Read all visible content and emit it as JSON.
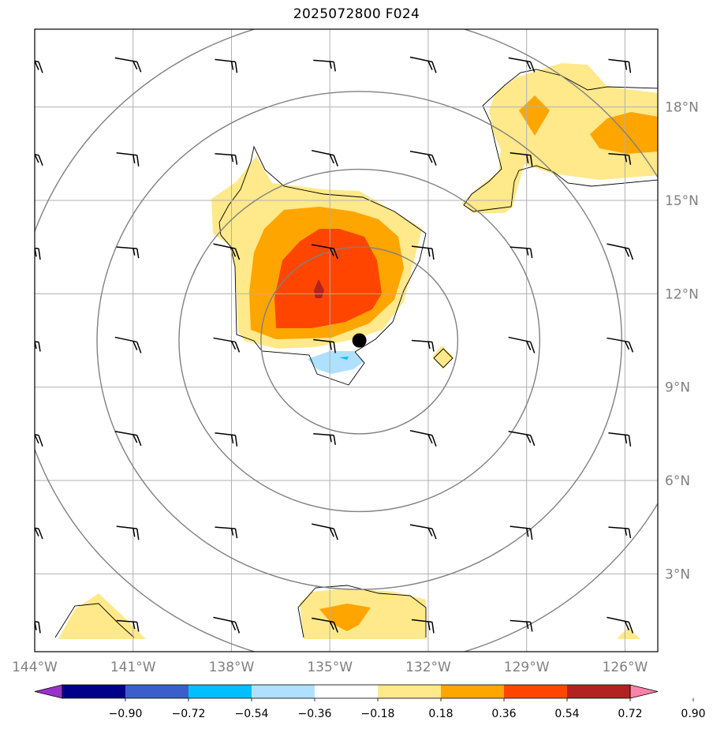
{
  "title": "2025072800 F024",
  "map": {
    "lon_range": [
      -144,
      -125
    ],
    "lat_range": [
      0.5,
      20.5
    ],
    "lon_ticks": [
      {
        "lon": -144,
        "label": "144°W"
      },
      {
        "lon": -141,
        "label": "141°W"
      },
      {
        "lon": -138,
        "label": "138°W"
      },
      {
        "lon": -135,
        "label": "135°W"
      },
      {
        "lon": -132,
        "label": "132°W"
      },
      {
        "lon": -129,
        "label": "129°W"
      },
      {
        "lon": -126,
        "label": "126°W"
      }
    ],
    "lat_ticks": [
      {
        "lat": 18,
        "label": "18°N"
      },
      {
        "lat": 15,
        "label": "15°N"
      },
      {
        "lat": 12,
        "label": "12°N"
      },
      {
        "lat": 9,
        "label": "9°N"
      },
      {
        "lat": 6,
        "label": "6°N"
      },
      {
        "lat": 3,
        "label": "3°N"
      }
    ],
    "grid": true,
    "storm_center": {
      "lon": -134.1,
      "lat": 10.5
    },
    "range_ring_radii_deg": [
      3,
      5.5,
      8,
      10.5
    ],
    "barb_rows_lat": [
      19.4,
      16.4,
      13.4,
      10.4,
      7.4,
      4.4,
      1.4
    ],
    "barb_cols_lon": [
      -144,
      -141,
      -138,
      -135,
      -132,
      -129,
      -126
    ]
  },
  "colorbar": {
    "tick_labels": [
      "−0.90",
      "−0.72",
      "−0.54",
      "−0.36",
      "−0.18",
      "0.18",
      "0.36",
      "0.54",
      "0.72",
      "0.90"
    ],
    "colors": [
      "#9932cc",
      "#00008b",
      "#3a5fcd",
      "#00bfff",
      "#b0e0ff",
      "#ffffff",
      "#ffe98a",
      "#ffa500",
      "#ff4500",
      "#b22222",
      "#ff82ab"
    ],
    "extend": "both"
  },
  "colors": {
    "ring": "#808080",
    "grid": "#b0b0b0",
    "barb": "#000000",
    "contour": "#000000"
  }
}
